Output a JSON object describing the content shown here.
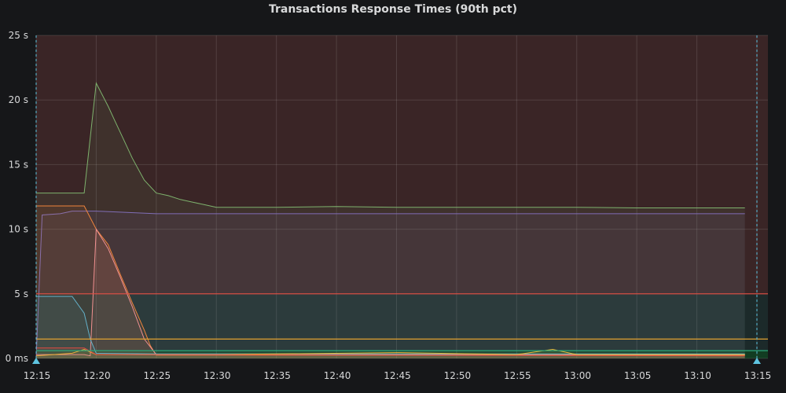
{
  "panel": {
    "title": "Transactions Response Times (90th pct)"
  },
  "chart_data": {
    "type": "line",
    "title": "Transactions Response Times (90th pct)",
    "xlabel": "",
    "ylabel": "",
    "ylim": [
      0,
      25
    ],
    "y_unit": "s",
    "y_ticks": [
      {
        "value": 0,
        "label": "0 ms"
      },
      {
        "value": 5,
        "label": "5 s"
      },
      {
        "value": 10,
        "label": "10 s"
      },
      {
        "value": 15,
        "label": "15 s"
      },
      {
        "value": 20,
        "label": "20 s"
      },
      {
        "value": 25,
        "label": "25 s"
      }
    ],
    "x_ticks": [
      "12:15",
      "12:20",
      "12:25",
      "12:30",
      "12:35",
      "12:40",
      "12:45",
      "12:50",
      "12:55",
      "13:00",
      "13:05",
      "13:10",
      "13:15"
    ],
    "xlim": [
      "12:15",
      "13:15"
    ],
    "grid": true,
    "legend": "none",
    "thresholds": [
      {
        "value": 5,
        "color": "#e24d42",
        "fill": "#3a2526"
      },
      {
        "value": 0.6,
        "color": "#2aa87a",
        "fill": "#1c2a2a"
      }
    ],
    "reference_lines": [
      {
        "value": 1.5,
        "color": "#e0a030"
      },
      {
        "value": 0.6,
        "color": "#2aa87a"
      }
    ],
    "time_markers": [
      "12:15",
      "13:15"
    ],
    "series": [
      {
        "color": "#7eb26d",
        "points": [
          [
            "12:15",
            12.8
          ],
          [
            "12:19",
            12.8
          ],
          [
            "12:20",
            21.3
          ],
          [
            "12:21",
            19.5
          ],
          [
            "12:21:30",
            18.5
          ],
          [
            "12:22",
            17.5
          ],
          [
            "12:23",
            15.5
          ],
          [
            "12:24",
            13.8
          ],
          [
            "12:25",
            12.8
          ],
          [
            "12:26",
            12.6
          ],
          [
            "12:27",
            12.3
          ],
          [
            "12:28",
            12.1
          ],
          [
            "12:29",
            11.9
          ],
          [
            "12:30",
            11.7
          ],
          [
            "12:35",
            11.7
          ],
          [
            "12:40",
            11.75
          ],
          [
            "12:45",
            11.7
          ],
          [
            "12:50",
            11.7
          ],
          [
            "12:55",
            11.7
          ],
          [
            "13:00",
            11.7
          ],
          [
            "13:05",
            11.65
          ],
          [
            "13:10",
            11.65
          ],
          [
            "13:14",
            11.65
          ]
        ]
      },
      {
        "color": "#806eb7",
        "points": [
          [
            "12:15",
            0
          ],
          [
            "12:15:30",
            11.1
          ],
          [
            "12:17",
            11.2
          ],
          [
            "12:18",
            11.4
          ],
          [
            "12:20",
            11.4
          ],
          [
            "12:25",
            11.2
          ],
          [
            "12:30",
            11.2
          ],
          [
            "12:40",
            11.2
          ],
          [
            "12:50",
            11.2
          ],
          [
            "13:00",
            11.2
          ],
          [
            "13:10",
            11.2
          ],
          [
            "13:14",
            11.2
          ]
        ]
      },
      {
        "color": "#ef843c",
        "points": [
          [
            "12:15",
            11.8
          ],
          [
            "12:19",
            11.8
          ],
          [
            "12:20",
            10.0
          ],
          [
            "12:21",
            8.8
          ],
          [
            "12:22",
            6.5
          ],
          [
            "12:23",
            4.3
          ],
          [
            "12:24",
            2.2
          ],
          [
            "12:24:30",
            1.0
          ],
          [
            "12:25",
            0.25
          ],
          [
            "12:30",
            0.25
          ],
          [
            "13:14",
            0.25
          ]
        ]
      },
      {
        "color": "#f29191",
        "points": [
          [
            "12:15",
            0.3
          ],
          [
            "12:19",
            0.3
          ],
          [
            "12:19:30",
            0.2
          ],
          [
            "12:20",
            10.0
          ],
          [
            "12:21",
            8.5
          ],
          [
            "12:22",
            6.3
          ],
          [
            "12:23",
            4.0
          ],
          [
            "12:24",
            1.5
          ],
          [
            "12:25",
            0.3
          ],
          [
            "13:14",
            0.3
          ]
        ]
      },
      {
        "color": "#64b0c8",
        "points": [
          [
            "12:15",
            4.8
          ],
          [
            "12:18",
            4.8
          ],
          [
            "12:19",
            3.5
          ],
          [
            "12:19:30",
            1.5
          ],
          [
            "12:20",
            0.4
          ],
          [
            "12:25",
            0.35
          ],
          [
            "13:14",
            0.35
          ]
        ]
      },
      {
        "color": "#eab839",
        "points": [
          [
            "12:15",
            0.2
          ],
          [
            "12:18",
            0.4
          ],
          [
            "12:19",
            0.7
          ],
          [
            "12:20",
            0.3
          ],
          [
            "12:30",
            0.3
          ],
          [
            "12:45",
            0.45
          ],
          [
            "12:55",
            0.3
          ],
          [
            "12:58",
            0.7
          ],
          [
            "13:00",
            0.3
          ],
          [
            "13:14",
            0.3
          ]
        ]
      },
      {
        "color": "#e24d42",
        "points": [
          [
            "12:15",
            0.8
          ],
          [
            "12:19",
            0.8
          ],
          [
            "12:20",
            0.3
          ],
          [
            "13:14",
            0.2
          ]
        ]
      }
    ]
  }
}
